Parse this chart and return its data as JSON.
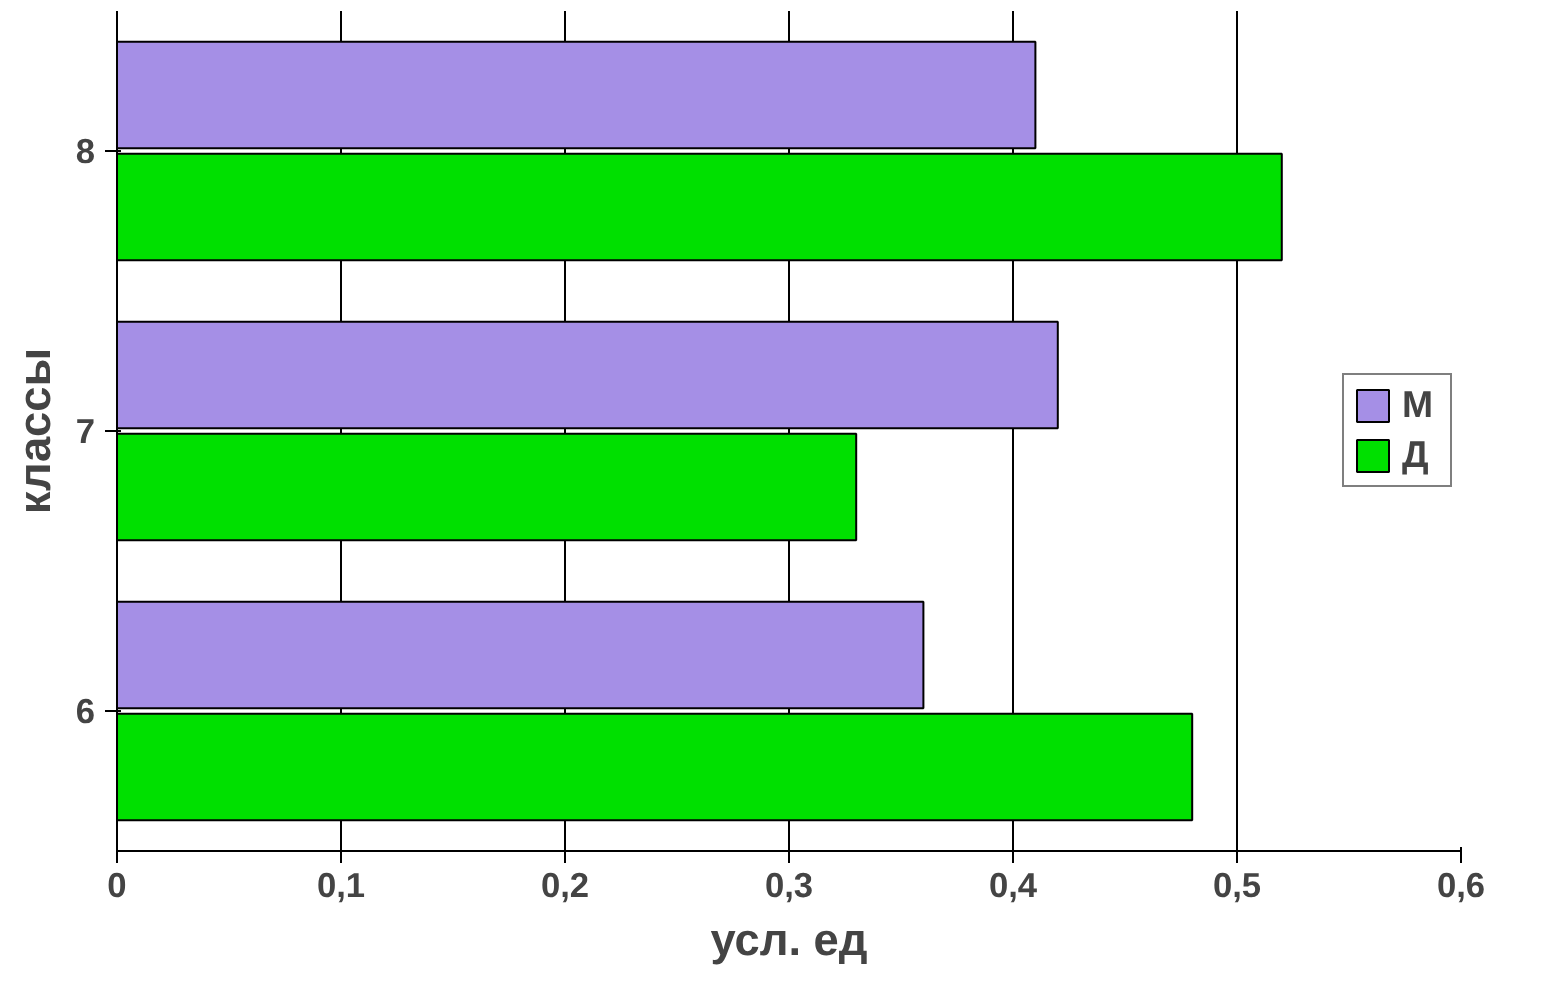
{
  "chart_data": {
    "type": "bar",
    "orientation": "horizontal",
    "xlabel": "усл. ед",
    "ylabel": "классы",
    "categories": [
      "8",
      "7",
      "6"
    ],
    "series": [
      {
        "name": "М",
        "color": "#a58fe6",
        "values": [
          0.41,
          0.42,
          0.36
        ]
      },
      {
        "name": "Д",
        "color": "#00e000",
        "values": [
          0.52,
          0.33,
          0.48
        ]
      }
    ],
    "xlim": [
      0,
      0.6
    ],
    "xticks": [
      {
        "value": 0,
        "label": "0"
      },
      {
        "value": 0.1,
        "label": "0,1"
      },
      {
        "value": 0.2,
        "label": "0,2"
      },
      {
        "value": 0.3,
        "label": "0,3"
      },
      {
        "value": 0.4,
        "label": "0,4"
      },
      {
        "value": 0.5,
        "label": "0,5"
      },
      {
        "value": 0.6,
        "label": "0,6"
      }
    ],
    "grid": "x",
    "legend": "right"
  }
}
